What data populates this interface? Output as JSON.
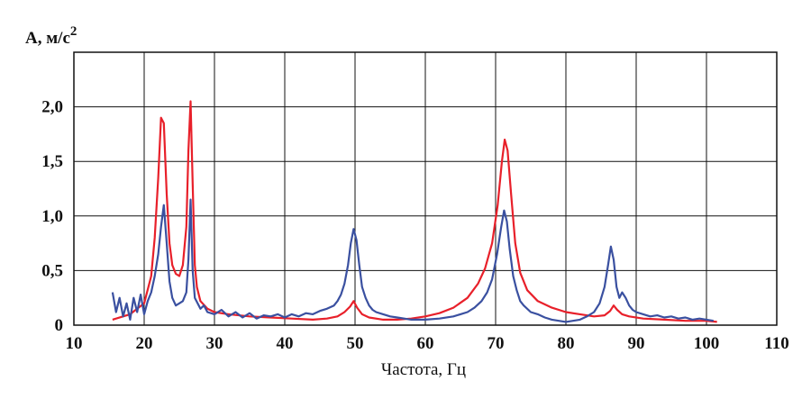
{
  "chart_data": {
    "type": "line",
    "ylabel": "A, м/с",
    "ylabel_sup": "2",
    "xlabel": "Частота, Гц",
    "xlim": [
      10,
      110
    ],
    "ylim": [
      0,
      2.5
    ],
    "x_ticks": [
      10,
      20,
      30,
      40,
      50,
      60,
      70,
      80,
      90,
      100,
      110
    ],
    "y_ticks": [
      0,
      0.5,
      1.0,
      1.5,
      2.0,
      2.5
    ],
    "x_tick_labels": [
      "10",
      "20",
      "30",
      "40",
      "50",
      "60",
      "70",
      "80",
      "90",
      "100",
      "110"
    ],
    "y_tick_labels": [
      "0",
      "0,5",
      "1,0",
      "1,5",
      "2,0",
      ""
    ],
    "grid": true,
    "series": [
      {
        "color": "#e8202a",
        "x": [
          15.5,
          17,
          18,
          19,
          20,
          21,
          21.5,
          22,
          22.4,
          22.8,
          23.2,
          23.6,
          24,
          24.5,
          25,
          25.5,
          26,
          26.3,
          26.6,
          26.9,
          27.2,
          27.5,
          28,
          29,
          30,
          32,
          35,
          38,
          41,
          44,
          46,
          47.5,
          48.5,
          49.3,
          49.8,
          50.3,
          51,
          52,
          54,
          56,
          58,
          60,
          62,
          64,
          66,
          67.5,
          68.5,
          69.5,
          70.3,
          70.9,
          71.3,
          71.7,
          72.2,
          72.8,
          73.5,
          74.5,
          76,
          78,
          80,
          82,
          84,
          85.5,
          86.3,
          86.8,
          87.3,
          88,
          89,
          91,
          94,
          97,
          100,
          101.5
        ],
        "values": [
          0.05,
          0.08,
          0.1,
          0.15,
          0.2,
          0.45,
          0.8,
          1.35,
          1.9,
          1.85,
          1.2,
          0.75,
          0.55,
          0.47,
          0.45,
          0.55,
          0.9,
          1.6,
          2.05,
          1.3,
          0.55,
          0.35,
          0.22,
          0.15,
          0.12,
          0.1,
          0.08,
          0.07,
          0.06,
          0.05,
          0.06,
          0.08,
          0.12,
          0.17,
          0.22,
          0.16,
          0.1,
          0.07,
          0.05,
          0.05,
          0.06,
          0.08,
          0.11,
          0.16,
          0.25,
          0.38,
          0.52,
          0.75,
          1.1,
          1.5,
          1.7,
          1.6,
          1.2,
          0.75,
          0.48,
          0.32,
          0.22,
          0.16,
          0.12,
          0.1,
          0.08,
          0.09,
          0.13,
          0.18,
          0.14,
          0.1,
          0.08,
          0.06,
          0.05,
          0.04,
          0.04,
          0.03
        ]
      },
      {
        "color": "#3a50a0",
        "x": [
          15.5,
          16,
          16.5,
          17,
          17.5,
          18,
          18.5,
          19,
          19.5,
          20,
          20.5,
          21,
          21.5,
          22,
          22.4,
          22.8,
          23.2,
          23.6,
          24,
          24.5,
          25,
          25.5,
          26,
          26.3,
          26.6,
          26.9,
          27.2,
          27.6,
          28,
          28.5,
          29,
          30,
          31,
          32,
          33,
          34,
          35,
          36,
          37,
          38,
          39,
          40,
          41,
          42,
          43,
          44,
          45,
          46,
          47,
          47.5,
          48,
          48.5,
          49,
          49.4,
          49.8,
          50.2,
          50.6,
          51,
          51.5,
          52,
          52.5,
          53,
          54,
          55,
          56,
          57,
          58,
          60,
          62,
          64,
          65,
          66,
          67,
          68,
          68.8,
          69.5,
          70.2,
          70.8,
          71.2,
          71.6,
          72,
          72.5,
          73,
          73.5,
          74,
          75,
          76,
          77,
          78,
          79,
          80,
          81,
          82,
          83,
          84,
          84.8,
          85.5,
          86,
          86.4,
          86.8,
          87.2,
          87.6,
          88,
          88.5,
          89,
          89.5,
          90,
          91,
          92,
          93,
          94,
          95,
          96,
          97,
          98,
          99,
          100,
          101
        ],
        "values": [
          0.3,
          0.12,
          0.25,
          0.08,
          0.2,
          0.05,
          0.25,
          0.12,
          0.28,
          0.1,
          0.22,
          0.3,
          0.45,
          0.65,
          0.9,
          1.1,
          0.75,
          0.4,
          0.25,
          0.18,
          0.2,
          0.22,
          0.3,
          0.6,
          1.15,
          0.5,
          0.25,
          0.2,
          0.15,
          0.18,
          0.12,
          0.1,
          0.14,
          0.08,
          0.12,
          0.07,
          0.11,
          0.06,
          0.09,
          0.08,
          0.1,
          0.07,
          0.1,
          0.08,
          0.11,
          0.1,
          0.13,
          0.15,
          0.18,
          0.22,
          0.28,
          0.38,
          0.55,
          0.75,
          0.88,
          0.78,
          0.55,
          0.35,
          0.25,
          0.18,
          0.14,
          0.12,
          0.1,
          0.08,
          0.07,
          0.06,
          0.05,
          0.05,
          0.06,
          0.08,
          0.1,
          0.12,
          0.16,
          0.22,
          0.3,
          0.42,
          0.65,
          0.9,
          1.05,
          0.95,
          0.7,
          0.45,
          0.32,
          0.22,
          0.18,
          0.12,
          0.1,
          0.07,
          0.05,
          0.04,
          0.03,
          0.04,
          0.05,
          0.08,
          0.12,
          0.2,
          0.35,
          0.55,
          0.72,
          0.6,
          0.35,
          0.25,
          0.3,
          0.25,
          0.18,
          0.14,
          0.12,
          0.1,
          0.08,
          0.09,
          0.07,
          0.08,
          0.06,
          0.07,
          0.05,
          0.06,
          0.05,
          0.04
        ]
      }
    ]
  }
}
